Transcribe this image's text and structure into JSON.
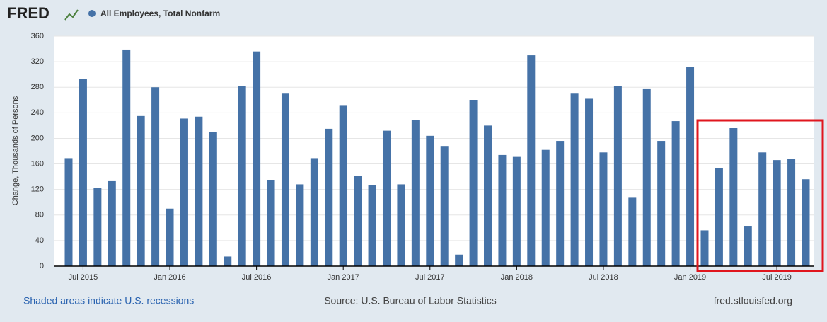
{
  "header": {
    "logo": "FRED"
  },
  "chart_data": {
    "type": "bar",
    "y_label": "Change, Thousands of Persons",
    "categories": [
      null,
      "Jul 2015",
      null,
      null,
      null,
      null,
      null,
      "Jan 2016",
      null,
      null,
      null,
      null,
      null,
      "Jul 2016",
      null,
      null,
      null,
      null,
      null,
      "Jan 2017",
      null,
      null,
      null,
      null,
      null,
      "Jul 2017",
      null,
      null,
      null,
      null,
      null,
      "Jan 2018",
      null,
      null,
      null,
      null,
      null,
      "Jul 2018",
      null,
      null,
      null,
      null,
      null,
      "Jan 2019",
      null,
      null,
      null,
      null,
      null,
      "Jul 2019",
      null,
      null
    ],
    "series": [
      {
        "name": "All Employees, Total Nonfarm",
        "color": "#4572a7",
        "values": [
          169,
          293,
          122,
          133,
          339,
          235,
          280,
          90,
          231,
          234,
          210,
          15,
          282,
          336,
          135,
          270,
          128,
          169,
          215,
          251,
          141,
          127,
          212,
          128,
          229,
          204,
          187,
          18,
          260,
          220,
          174,
          171,
          330,
          182,
          196,
          270,
          262,
          178,
          282,
          107,
          277,
          196,
          227,
          312,
          56,
          153,
          216,
          62,
          178,
          166,
          168,
          136
        ]
      }
    ],
    "ylim": [
      0,
      360
    ],
    "yticks": [
      0,
      40,
      80,
      120,
      160,
      200,
      240,
      280,
      320,
      360
    ],
    "grid": true
  },
  "footer": {
    "note": "Shaded areas indicate U.S. recessions",
    "source": "Source: U.S. Bureau of Labor Statistics",
    "site": "fred.stlouisfed.org"
  }
}
